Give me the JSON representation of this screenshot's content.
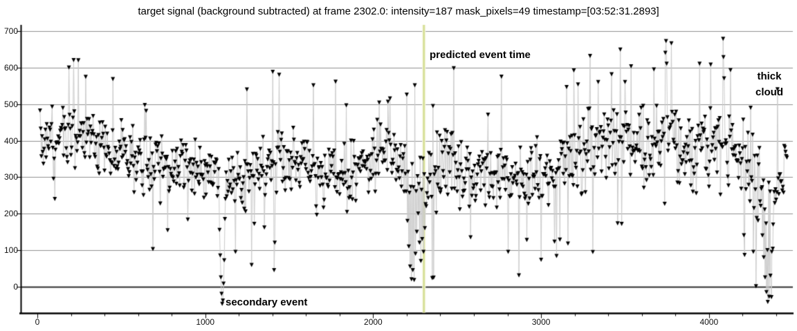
{
  "title": "target signal (background subtracted) at frame 2302.0: intensity=187 mask_pixels=49 timestamp=[03:52:31.2893]",
  "annotations": {
    "predicted_event": "predicted event time",
    "secondary_event": "secondary event",
    "thick_cloud_line1": "thick",
    "thick_cloud_line2": "cloud"
  },
  "chart_data": {
    "type": "scatter",
    "title": "target signal (background subtracted) at frame 2302.0: intensity=187 mask_pixels=49 timestamp=[03:52:31.2893]",
    "xlabel": "",
    "ylabel": "",
    "x_ticks": [
      0,
      1000,
      2000,
      3000,
      4000
    ],
    "x_minor_step": 200,
    "y_ticks": [
      0,
      100,
      200,
      300,
      400,
      500,
      600,
      700
    ],
    "xlim": [
      0,
      4470
    ],
    "ylim": [
      -60,
      700
    ],
    "grid": true,
    "legend": false,
    "marker": {
      "shape": "triangle-down",
      "color": "#000000"
    },
    "stem_color": "#cbcbcb",
    "grid_color": "#8f8f8f",
    "zero_line_color": "#2f2f2f",
    "axis_color": "#000000",
    "event_line": {
      "x": 2302,
      "color": "#cdd77e",
      "halo": "#f2f4da",
      "label": "predicted event time"
    },
    "events": [
      {
        "name": "secondary event",
        "x": 1100,
        "min_value": -47
      },
      {
        "name": "predicted event",
        "x": 2302,
        "min_value": 18
      },
      {
        "name": "thick cloud",
        "x": 4350,
        "min_value": -42,
        "also": "bright peak 672 at x=3744"
      }
    ],
    "series_model": {
      "seed": 20230352,
      "x_start": 16,
      "x_end": 4464,
      "x_step": 4,
      "noise_gain": 1.35,
      "tail_chance": 0.05,
      "tail_gain": 1.35,
      "envelope": [
        [
          0,
          390,
          85
        ],
        [
          150,
          415,
          105
        ],
        [
          300,
          395,
          95
        ],
        [
          450,
          380,
          100
        ],
        [
          600,
          340,
          90
        ],
        [
          750,
          330,
          95
        ],
        [
          900,
          330,
          100
        ],
        [
          1050,
          300,
          105
        ],
        [
          1150,
          290,
          105
        ],
        [
          1300,
          310,
          100
        ],
        [
          1420,
          330,
          115
        ],
        [
          1550,
          340,
          105
        ],
        [
          1700,
          300,
          95
        ],
        [
          1850,
          300,
          100
        ],
        [
          2000,
          345,
          105
        ],
        [
          2120,
          365,
          105
        ],
        [
          2230,
          300,
          110
        ],
        [
          2330,
          295,
          110
        ],
        [
          2450,
          325,
          110
        ],
        [
          2600,
          305,
          100
        ],
        [
          2750,
          310,
          100
        ],
        [
          2900,
          295,
          100
        ],
        [
          3050,
          325,
          105
        ],
        [
          3200,
          345,
          115
        ],
        [
          3350,
          385,
          110
        ],
        [
          3500,
          390,
          110
        ],
        [
          3650,
          380,
          110
        ],
        [
          3780,
          415,
          115
        ],
        [
          3900,
          365,
          110
        ],
        [
          4020,
          385,
          115
        ],
        [
          4120,
          395,
          120
        ],
        [
          4220,
          330,
          120
        ],
        [
          4310,
          255,
          125
        ],
        [
          4380,
          220,
          120
        ],
        [
          4440,
          320,
          95
        ],
        [
          4470,
          340,
          85
        ]
      ],
      "anomalies": [
        [
          188,
          600
        ],
        [
          192,
          470
        ],
        [
          450,
          568
        ],
        [
          1085,
          155
        ],
        [
          1089,
          85
        ],
        [
          1093,
          25
        ],
        [
          1097,
          -20
        ],
        [
          1101,
          -47
        ],
        [
          1105,
          -38
        ],
        [
          1109,
          8
        ],
        [
          1113,
          72
        ],
        [
          1117,
          185
        ],
        [
          1180,
          95
        ],
        [
          1398,
          330
        ],
        [
          1402,
          588
        ],
        [
          1406,
          340
        ],
        [
          1410,
          45
        ],
        [
          1414,
          120
        ],
        [
          1418,
          335
        ],
        [
          2100,
          515
        ],
        [
          2196,
          260
        ],
        [
          2204,
          180
        ],
        [
          2212,
          110
        ],
        [
          2220,
          55
        ],
        [
          2228,
          20
        ],
        [
          2236,
          45
        ],
        [
          2244,
          18
        ],
        [
          2252,
          90
        ],
        [
          2260,
          150
        ],
        [
          2268,
          200
        ],
        [
          2276,
          120
        ],
        [
          2284,
          70
        ],
        [
          2292,
          130
        ],
        [
          2300,
          95
        ],
        [
          2308,
          160
        ],
        [
          2316,
          220
        ],
        [
          2480,
          598
        ],
        [
          2580,
          135
        ],
        [
          2915,
          128
        ],
        [
          3160,
          118
        ],
        [
          3195,
          592
        ],
        [
          3500,
          560
        ],
        [
          3740,
          640
        ],
        [
          3744,
          672
        ],
        [
          3748,
          610
        ],
        [
          3944,
          610
        ],
        [
          4010,
          608
        ],
        [
          4086,
          628
        ],
        [
          4090,
          570
        ],
        [
          4264,
          95
        ],
        [
          4318,
          140
        ],
        [
          4326,
          80
        ],
        [
          4334,
          25
        ],
        [
          4342,
          -15
        ],
        [
          4350,
          -42
        ],
        [
          4358,
          -28
        ],
        [
          4366,
          30
        ],
        [
          4374,
          95
        ],
        [
          4382,
          170
        ]
      ]
    }
  }
}
